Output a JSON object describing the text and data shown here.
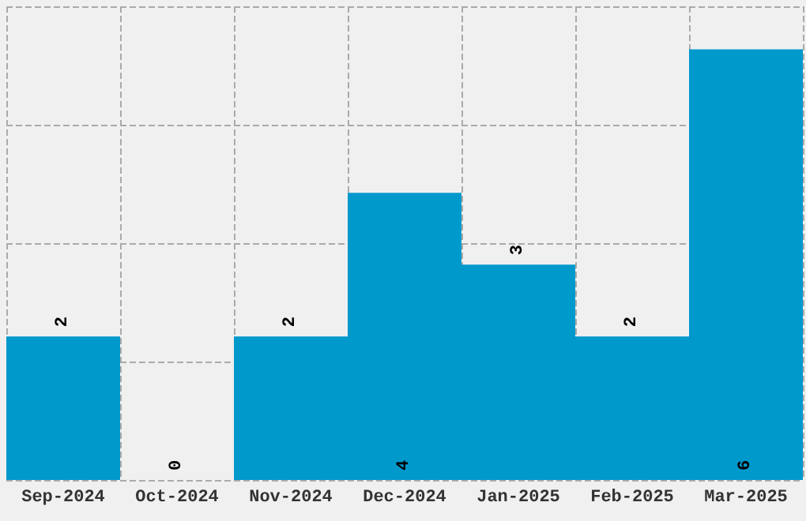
{
  "chart_data": {
    "type": "bar",
    "categories": [
      "Sep-2024",
      "Oct-2024",
      "Nov-2024",
      "Dec-2024",
      "Jan-2025",
      "Feb-2025",
      "Mar-2025"
    ],
    "values": [
      2,
      0,
      2,
      4,
      3,
      2,
      6
    ],
    "color": "#0099cc",
    "data_labels": true,
    "grid": true,
    "tick_labels": "x",
    "ylim": [
      0,
      6.6
    ],
    "yticks": [
      {
        "value": 0,
        "label": null
      },
      {
        "value": 1.65,
        "label": null
      },
      {
        "value": 3.3,
        "label": null
      },
      {
        "value": 4.95,
        "label": null
      },
      {
        "value": 6.6,
        "label": null
      }
    ]
  }
}
